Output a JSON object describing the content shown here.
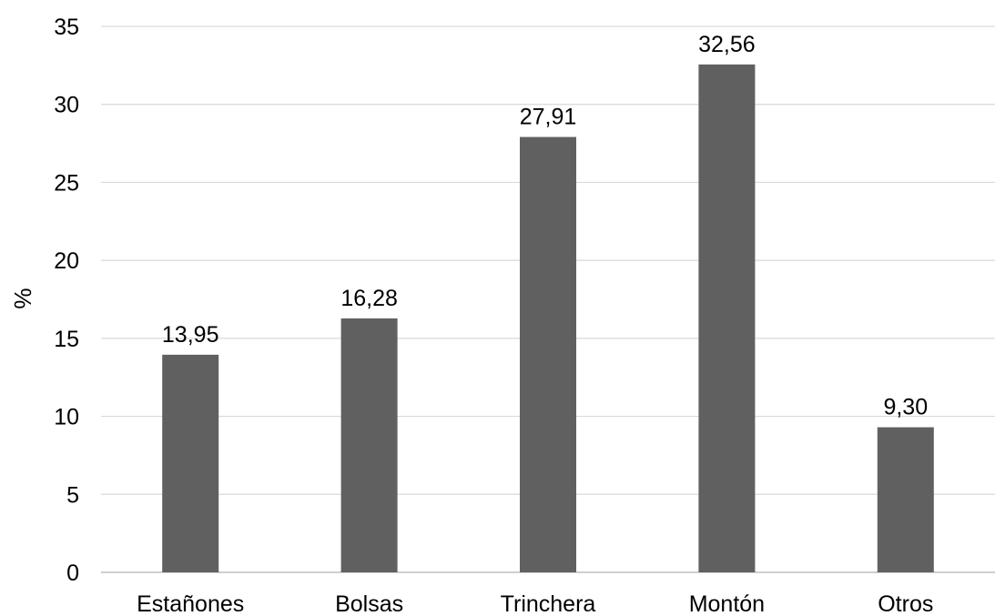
{
  "chart_data": {
    "type": "bar",
    "categories": [
      "Estañones",
      "Bolsas",
      "Trinchera",
      "Montón",
      "Otros"
    ],
    "values": [
      13.95,
      16.28,
      27.91,
      32.56,
      9.3
    ],
    "value_labels": [
      "13,95",
      "16,28",
      "27,91",
      "32,56",
      "9,30"
    ],
    "title": "",
    "xlabel": "",
    "ylabel": "%",
    "ylim": [
      0,
      35
    ],
    "yticks": [
      0,
      5,
      10,
      15,
      20,
      25,
      30,
      35
    ],
    "grid": true,
    "legend": "none",
    "colors": {
      "bar": "#606060",
      "grid": "#d9d9d9",
      "axis": "#bfbfbf",
      "text": "#000000"
    }
  }
}
